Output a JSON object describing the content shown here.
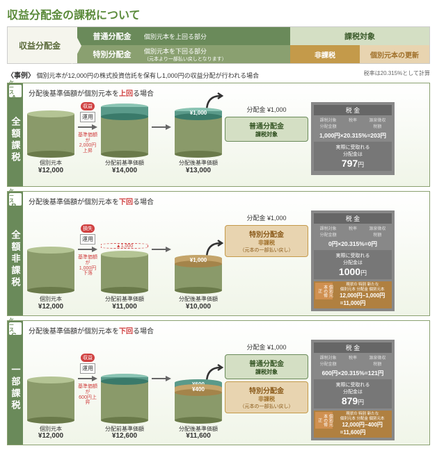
{
  "title": "収益分配金の課税について",
  "flow": {
    "left": "収益分配金",
    "rows": [
      {
        "tag": "普通分配金",
        "desc": "個別元本を上回る部分",
        "right": "課税対象"
      },
      {
        "tag": "特別分配金",
        "desc": "個別元本を下回る部分",
        "sub": "（元本より一部払い戻しとなります）",
        "nontax": "非課税",
        "update": "個別元本の更新"
      }
    ]
  },
  "example": {
    "label": "〈事例〉",
    "text": "個別元本が12,000円の株式投資信託を保有し1,000円の収益分配が行われる場合",
    "rate": "税率は20.315%として計算"
  },
  "colors": {
    "olive": "#8a9a6a",
    "olive_d": "#6a7a4a",
    "olive_l": "#b4c494",
    "teal": "#5a9a8a",
    "teal_d": "#3a7a6a",
    "teal_l": "#8ac4b4",
    "brown": "#c4a46a",
    "brown_d": "#a4844a",
    "red": "#d04040"
  },
  "cases": [
    {
      "id": "A",
      "tab": "全額課税",
      "head": "分配後基準価額が個別元本を",
      "dir": "上回",
      "dir_cls": "up",
      "tail": "る場合",
      "cyl1": {
        "label": "個別元本",
        "val": "¥12,000",
        "h": 58,
        "color": "olive"
      },
      "arr1": {
        "lbl": "運用",
        "note": "基準価額が\n2,000円上昇",
        "tag": "収益",
        "tag_color": "#d04040"
      },
      "cyl2": {
        "label": "分配前基準価額",
        "val": "¥14,000",
        "h": 68,
        "color": "olive",
        "top_slice": {
          "h": 14,
          "color": "teal",
          "text": ""
        }
      },
      "cyl3": {
        "label": "分配後基準価額",
        "val": "¥13,000",
        "h": 62,
        "color": "olive",
        "top_slice": {
          "h": 8,
          "color": "teal",
          "text": "¥1,000"
        }
      },
      "dist": {
        "amt": "分配金 ¥1,000",
        "badges": [
          {
            "type": "normal",
            "t1": "普通分配金",
            "t2": "課税対象"
          }
        ]
      },
      "tax": {
        "calc": "1,000円×20.315%=203円",
        "recv_lbl": "実際に受取れる\n分配金は",
        "recv": "797",
        "yen": "円"
      }
    },
    {
      "id": "B",
      "tab": "全額非課税",
      "head": "分配後基準価額が個別元本を",
      "dir": "下回",
      "dir_cls": "dn",
      "tail": "る場合",
      "cyl1": {
        "label": "個別元本",
        "val": "¥12,000",
        "h": 58,
        "color": "olive"
      },
      "arr1": {
        "lbl": "運用",
        "note": "基準価額が\n1,000円下落",
        "tag": "損失",
        "tag_color": "#d04040"
      },
      "cyl2": {
        "label": "分配前基準価額",
        "val": "¥11,000",
        "h": 52,
        "color": "olive",
        "gap": {
          "h": 8,
          "text": "▲1,000"
        }
      },
      "cyl3": {
        "label": "分配後基準価額",
        "val": "¥10,000",
        "h": 46,
        "color": "olive",
        "top_slice": {
          "h": 8,
          "color": "brown",
          "text": "¥1,000"
        }
      },
      "dist": {
        "amt": "分配金 ¥1,000",
        "badges": [
          {
            "type": "special",
            "t1": "特別分配金",
            "t2": "非課税",
            "t3": "（元本の一部払い戻し）"
          }
        ]
      },
      "tax": {
        "calc": "0円×20.315%=0円",
        "recv_lbl": "実際に受取れる\n分配金は",
        "recv": "1000",
        "yen": "円",
        "update": {
          "hdr": "現状の 特別 新たな\n個別元本 分配金 個別元本",
          "calc": "12,000円−1,000円=11,000円"
        }
      }
    },
    {
      "id": "C",
      "tab": "一部課税",
      "head": "分配後基準価額が個別元本を",
      "dir": "下回",
      "dir_cls": "dn",
      "tail": "る場合",
      "cyl1": {
        "label": "個別元本",
        "val": "¥12,000",
        "h": 58,
        "color": "olive"
      },
      "arr1": {
        "lbl": "運用",
        "note": "基準価額が\n600円上昇",
        "tag": "収益",
        "tag_color": "#d04040"
      },
      "cyl2": {
        "label": "分配前基準価額",
        "val": "¥12,600",
        "h": 62,
        "color": "olive",
        "top_slice": {
          "h": 6,
          "color": "teal",
          "text": ""
        }
      },
      "cyl3": {
        "label": "分配後基準価額",
        "val": "¥11,600",
        "h": 54,
        "color": "olive",
        "slices": [
          {
            "h": 7,
            "color": "teal",
            "text": "¥600"
          },
          {
            "h": 7,
            "color": "brown",
            "text": "¥400"
          }
        ]
      },
      "dist": {
        "amt": "分配金 ¥1,000",
        "badges": [
          {
            "type": "normal",
            "t1": "普通分配金",
            "t2": "課税対象"
          },
          {
            "type": "special",
            "t1": "特別分配金",
            "t2": "非課税",
            "t3": "（元本の一部払い戻し）"
          }
        ]
      },
      "tax": {
        "calc": "600円×20.315%=121円",
        "recv_lbl": "実際に受取れる\n分配金は",
        "recv": "879",
        "yen": "円",
        "update": {
          "hdr": "現状の 特別 新たな\n個別元本 分配金 個別元本",
          "calc": "12,000円−400円=11,600円"
        }
      }
    }
  ],
  "tax_hdr": "税 金",
  "tax_sub": [
    "課税対象\n分配金額",
    "税率",
    "源泉徴収\n税額"
  ]
}
